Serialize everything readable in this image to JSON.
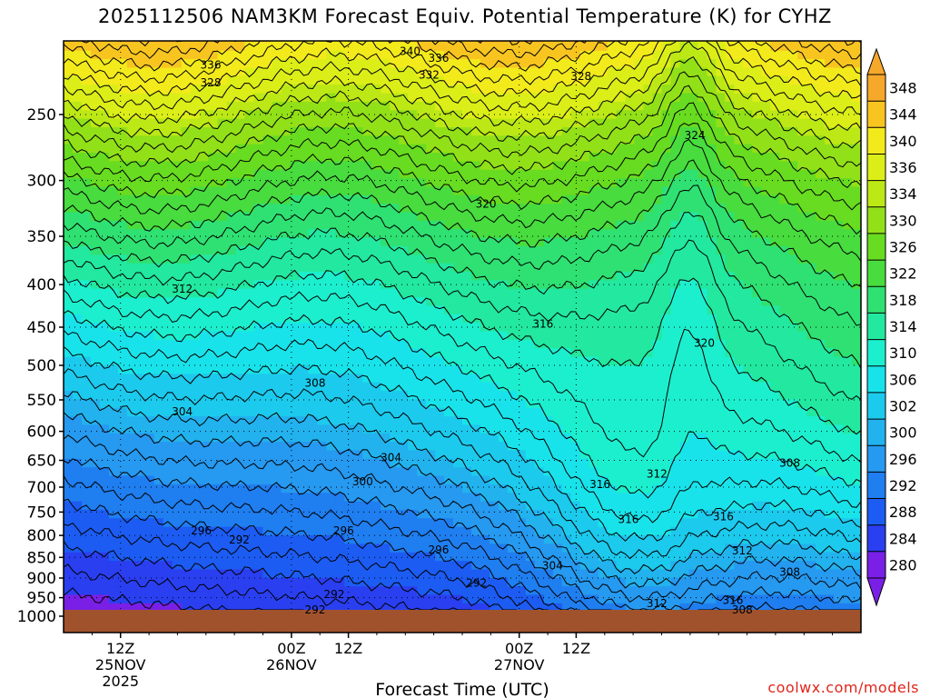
{
  "chart_data": {
    "type": "heatmap",
    "title": "2025112506 NAM3KM Forecast Equiv. Potential Temperature (K) for CYHZ",
    "xlabel": "Forecast Time (UTC)",
    "ylabel": "",
    "y_axis": {
      "scale": "log-pressure",
      "range": [
        1000,
        200
      ],
      "ticks": [
        1000,
        950,
        900,
        850,
        800,
        750,
        700,
        650,
        600,
        550,
        500,
        450,
        400,
        350,
        300,
        250
      ]
    },
    "x_axis": {
      "range_hours": [
        0,
        84
      ],
      "ticks": [
        {
          "hour": 6,
          "label": "12Z",
          "date": "25NOV",
          "year": "2025"
        },
        {
          "hour": 24,
          "label": "00Z",
          "date": "26NOV",
          "year": ""
        },
        {
          "hour": 30,
          "label": "12Z",
          "date": "",
          "year": ""
        },
        {
          "hour": 48,
          "label": "00Z",
          "date": "27NOV",
          "year": ""
        },
        {
          "hour": 54,
          "label": "12Z",
          "date": "",
          "year": ""
        }
      ]
    },
    "colorbar": {
      "levels": [
        280,
        284,
        288,
        292,
        296,
        300,
        302,
        306,
        310,
        314,
        318,
        322,
        326,
        330,
        334,
        336,
        340,
        344,
        348
      ],
      "colors": [
        "#7a1fe6",
        "#2a3ff0",
        "#1c5cf2",
        "#1f7ef0",
        "#2699f0",
        "#22b2ee",
        "#1ccaed",
        "#19e3ea",
        "#1cefce",
        "#22e8a0",
        "#2fe172",
        "#48dc3e",
        "#68dc20",
        "#92e018",
        "#bce816",
        "#dcee18",
        "#f3ea1c",
        "#f8c520",
        "#f6a82a"
      ]
    },
    "contour_labels": [
      {
        "value": 340,
        "hour": 36.5,
        "p": 210
      },
      {
        "value": 336,
        "hour": 39.5,
        "p": 214
      },
      {
        "value": 336,
        "hour": 15.5,
        "p": 218
      },
      {
        "value": 332,
        "hour": 38.5,
        "p": 224
      },
      {
        "value": 328,
        "hour": 15.5,
        "p": 229
      },
      {
        "value": 328,
        "hour": 54.5,
        "p": 225
      },
      {
        "value": 324,
        "hour": 66.5,
        "p": 265
      },
      {
        "value": 320,
        "hour": 44.5,
        "p": 320
      },
      {
        "value": 316,
        "hour": 50.5,
        "p": 446
      },
      {
        "value": 320,
        "hour": 67.5,
        "p": 470
      },
      {
        "value": 312,
        "hour": 12.5,
        "p": 405
      },
      {
        "value": 308,
        "hour": 26.5,
        "p": 525
      },
      {
        "value": 304,
        "hour": 12.5,
        "p": 568
      },
      {
        "value": 304,
        "hour": 34.5,
        "p": 645
      },
      {
        "value": 300,
        "hour": 31.5,
        "p": 690
      },
      {
        "value": 296,
        "hour": 14.5,
        "p": 790
      },
      {
        "value": 292,
        "hour": 18.5,
        "p": 810
      },
      {
        "value": 296,
        "hour": 29.5,
        "p": 790
      },
      {
        "value": 296,
        "hour": 39.5,
        "p": 833
      },
      {
        "value": 292,
        "hour": 43.5,
        "p": 912
      },
      {
        "value": 292,
        "hour": 28.5,
        "p": 942
      },
      {
        "value": 292,
        "hour": 26.5,
        "p": 982
      },
      {
        "value": 304,
        "hour": 51.5,
        "p": 870
      },
      {
        "value": 316,
        "hour": 56.5,
        "p": 695
      },
      {
        "value": 316,
        "hour": 59.5,
        "p": 765
      },
      {
        "value": 312,
        "hour": 62.5,
        "p": 675
      },
      {
        "value": 316,
        "hour": 69.5,
        "p": 760
      },
      {
        "value": 312,
        "hour": 71.5,
        "p": 835
      },
      {
        "value": 308,
        "hour": 76.5,
        "p": 885
      },
      {
        "value": 308,
        "hour": 76.5,
        "p": 655
      },
      {
        "value": 316,
        "hour": 70.5,
        "p": 957
      },
      {
        "value": 312,
        "hour": 62.5,
        "p": 965
      },
      {
        "value": 308,
        "hour": 71.5,
        "p": 983
      }
    ]
  },
  "credit": "coolwx.com/models",
  "colors": {
    "ground": "#a0522d",
    "credit_text": "#e0251b"
  }
}
